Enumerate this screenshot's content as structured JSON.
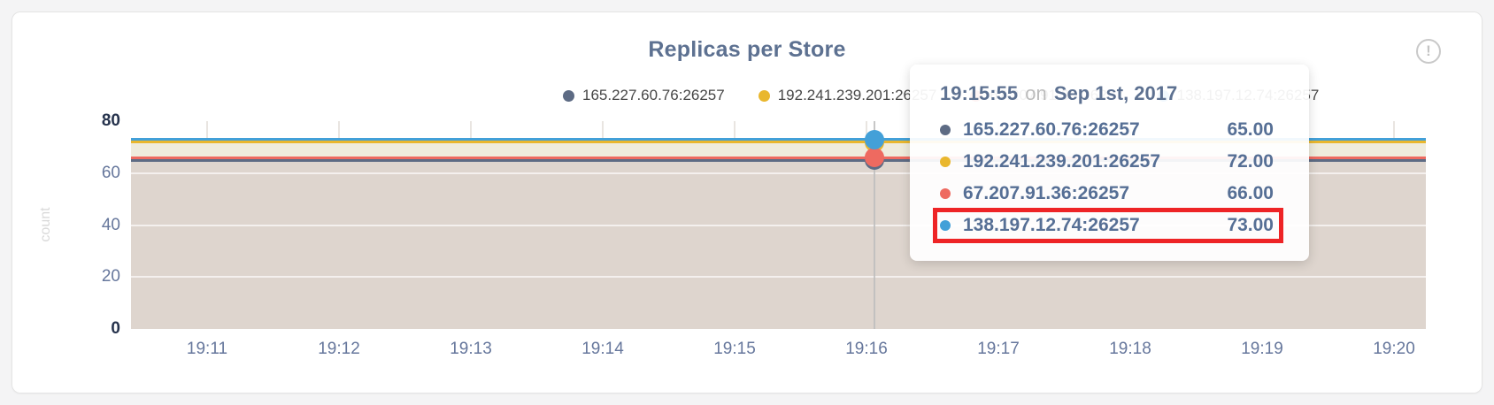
{
  "icons": {
    "info": "!"
  },
  "colors": {
    "accent_text": "#5d7191",
    "page_bg": "#f4f4f5",
    "card_bg": "#ffffff",
    "highlight_red": "#ee2426",
    "fill_lower": "#ded5ce",
    "fill_upper": "#efecdd",
    "axis_maxmin": "#26334d",
    "axis_mid": "#66779c"
  },
  "chart_data": {
    "type": "line",
    "title": "Replicas per Store",
    "xlabel": "",
    "ylabel": "count",
    "ylim": [
      0,
      80
    ],
    "y_ticks": [
      0,
      20,
      40,
      60,
      80
    ],
    "x_ticks": [
      "19:11",
      "19:12",
      "19:13",
      "19:14",
      "19:15",
      "19:16",
      "19:17",
      "19:18",
      "19:19",
      "19:20"
    ],
    "grid": true,
    "legend_position": "top",
    "values_constant_over_window": true,
    "series": [
      {
        "name": "165.227.60.76:26257",
        "color": "#5d6b84",
        "value": 65
      },
      {
        "name": "192.241.239.201:26257",
        "color": "#e9b72e",
        "value": 72
      },
      {
        "name": "67.207.91.36:26257",
        "color": "#ee6a60",
        "value": 66
      },
      {
        "name": "138.197.12.74:26257",
        "color": "#43a0d8",
        "value": 73
      }
    ],
    "fill_bands": [
      {
        "from": 72,
        "to": 66,
        "color": "#efecdd"
      },
      {
        "from": 66,
        "to": 0,
        "color": "#ded5ce"
      }
    ]
  },
  "tooltip": {
    "time": "19:15:55",
    "connector": "on",
    "date": "Sep 1st, 2017",
    "rows": [
      {
        "name": "165.227.60.76:26257",
        "value": "65.00",
        "color": "#5d6b84",
        "highlighted": false
      },
      {
        "name": "192.241.239.201:26257",
        "value": "72.00",
        "color": "#e9b72e",
        "highlighted": false
      },
      {
        "name": "67.207.91.36:26257",
        "value": "66.00",
        "color": "#ee6a60",
        "highlighted": false
      },
      {
        "name": "138.197.12.74:26257",
        "value": "73.00",
        "color": "#43a0d8",
        "highlighted": true
      }
    ]
  }
}
